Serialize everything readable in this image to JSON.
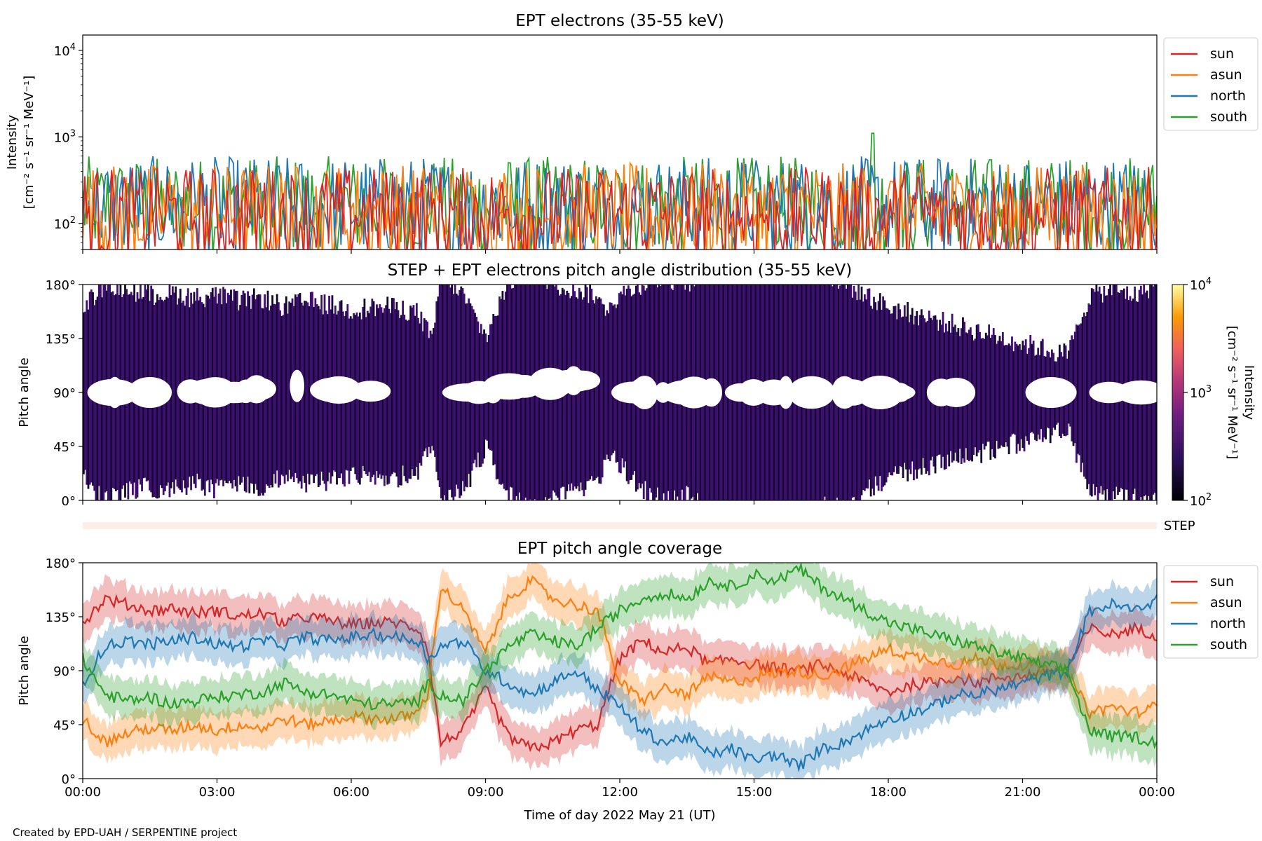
{
  "footer": {
    "credit": "Created by EPD-UAH / SERPENTINE project"
  },
  "colors": {
    "sun": "#d62728",
    "asun": "#ff7f0e",
    "north": "#1f77b4",
    "south": "#2ca02c",
    "pad_fill": "#3d0f6e",
    "pad_dark": "#12072e",
    "step_band": "#fdeee8"
  },
  "chart_data": [
    {
      "type": "line",
      "title": "EPT electrons (35-55 keV)",
      "ylabel": "Intensity",
      "ylabel_units": "[cm⁻² s⁻¹ sr⁻¹ MeV⁻¹]",
      "yscale": "log",
      "ylim": [
        50,
        15000
      ],
      "yticks": [
        {
          "value": 100,
          "base": "10",
          "exp": "2"
        },
        {
          "value": 1000,
          "base": "10",
          "exp": "3"
        },
        {
          "value": 10000,
          "base": "10",
          "exp": "4"
        }
      ],
      "xlim": [
        "00:00",
        "24:00"
      ],
      "legend": "outside-right",
      "series": [
        {
          "name": "sun",
          "color": "#d62728",
          "typical_range": [
            50,
            450
          ]
        },
        {
          "name": "asun",
          "color": "#ff7f0e",
          "typical_range": [
            50,
            500
          ]
        },
        {
          "name": "north",
          "color": "#1f77b4",
          "typical_range": [
            60,
            600
          ]
        },
        {
          "name": "south",
          "color": "#2ca02c",
          "typical_range": [
            60,
            600
          ],
          "peak": {
            "x": "17:40",
            "y": 1100
          }
        }
      ]
    },
    {
      "type": "heatmap",
      "title": "STEP + EPT electrons pitch angle distribution (35-55 keV)",
      "ylabel": "Pitch angle",
      "ylim": [
        0,
        180
      ],
      "yticks": [
        "0°",
        "45°",
        "90°",
        "135°",
        "180°"
      ],
      "xlim": [
        "00:00",
        "24:00"
      ],
      "colorbar": {
        "label": "Intensity",
        "units": "[cm⁻² s⁻¹ sr⁻¹ MeV⁻¹]",
        "scale": "log",
        "range": [
          100,
          10000
        ],
        "ticks": [
          {
            "value": 100,
            "base": "10",
            "exp": "2"
          },
          {
            "value": 1000,
            "base": "10",
            "exp": "3"
          },
          {
            "value": 10000,
            "base": "10",
            "exp": "4"
          }
        ]
      }
    },
    {
      "type": "heatmap",
      "label": "STEP",
      "xlim": [
        "00:00",
        "24:00"
      ]
    },
    {
      "type": "line",
      "title": "EPT pitch angle coverage",
      "ylabel": "Pitch angle",
      "ylim": [
        0,
        180
      ],
      "yticks": [
        "0°",
        "45°",
        "90°",
        "135°",
        "180°"
      ],
      "xlabel": "Time of day 2022 May 21 (UT)",
      "xticks": [
        "00:00",
        "03:00",
        "06:00",
        "09:00",
        "12:00",
        "15:00",
        "18:00",
        "21:00",
        "00:00"
      ],
      "xlim": [
        "00:00",
        "24:00"
      ],
      "legend": "outside-right",
      "series": [
        {
          "name": "sun",
          "color": "#d62728",
          "x": [
            0,
            0.5,
            1,
            1.5,
            2,
            2.5,
            3,
            3.5,
            4,
            4.5,
            5,
            5.5,
            6,
            6.5,
            7,
            7.5,
            7.7,
            8,
            8.5,
            9,
            9.5,
            10,
            10.5,
            11,
            11.5,
            12,
            12.5,
            13,
            13.5,
            14,
            14.5,
            15,
            15.5,
            16,
            16.5,
            17,
            17.5,
            18,
            18.5,
            19,
            19.5,
            20,
            20.5,
            21,
            21.5,
            22,
            22.5,
            23,
            23.5,
            24
          ],
          "y": [
            130,
            150,
            145,
            140,
            142,
            138,
            140,
            135,
            138,
            130,
            135,
            132,
            128,
            130,
            130,
            125,
            110,
            30,
            40,
            75,
            35,
            25,
            30,
            40,
            45,
            100,
            115,
            105,
            110,
            95,
            100,
            95,
            92,
            90,
            95,
            88,
            80,
            72,
            78,
            80,
            85,
            80,
            85,
            85,
            90,
            92,
            125,
            120,
            125,
            120
          ]
        },
        {
          "name": "asun",
          "color": "#ff7f0e",
          "x": [
            0,
            0.5,
            1,
            1.5,
            2,
            2.5,
            3,
            3.5,
            4,
            4.5,
            5,
            5.5,
            6,
            6.5,
            7,
            7.5,
            7.7,
            8,
            8.5,
            9,
            9.5,
            10,
            10.5,
            11,
            11.5,
            12,
            12.5,
            13,
            13.5,
            14,
            14.5,
            15,
            15.5,
            16,
            16.5,
            17,
            17.5,
            18,
            18.5,
            19,
            19.5,
            20,
            20.5,
            21,
            21.5,
            22,
            22.5,
            23,
            23.5,
            24
          ],
          "y": [
            50,
            30,
            38,
            42,
            40,
            45,
            40,
            45,
            42,
            50,
            45,
            48,
            52,
            50,
            50,
            55,
            70,
            160,
            140,
            105,
            150,
            165,
            150,
            145,
            140,
            80,
            65,
            75,
            70,
            85,
            80,
            85,
            88,
            90,
            85,
            92,
            100,
            108,
            102,
            100,
            95,
            100,
            95,
            95,
            90,
            88,
            55,
            60,
            55,
            60
          ]
        },
        {
          "name": "north",
          "color": "#1f77b4",
          "x": [
            0,
            0.5,
            1,
            1.5,
            2,
            2.5,
            3,
            3.5,
            4,
            4.5,
            5,
            5.5,
            6,
            6.5,
            7,
            7.5,
            7.7,
            8,
            8.5,
            9,
            9.5,
            10,
            10.5,
            11,
            11.5,
            12,
            12.5,
            13,
            13.5,
            14,
            14.5,
            15,
            15.5,
            16,
            16.5,
            17,
            17.5,
            18,
            18.5,
            19,
            19.5,
            20,
            20.5,
            21,
            21.5,
            22,
            22.5,
            23,
            23.5,
            24
          ],
          "y": [
            80,
            110,
            115,
            112,
            115,
            118,
            112,
            110,
            115,
            112,
            118,
            115,
            118,
            120,
            118,
            115,
            100,
            110,
            115,
            90,
            80,
            70,
            80,
            90,
            75,
            60,
            40,
            30,
            35,
            20,
            25,
            15,
            20,
            10,
            25,
            30,
            40,
            50,
            55,
            60,
            70,
            70,
            75,
            80,
            85,
            90,
            140,
            145,
            140,
            150
          ]
        },
        {
          "name": "south",
          "color": "#2ca02c",
          "x": [
            0,
            0.5,
            1,
            1.5,
            2,
            2.5,
            3,
            3.5,
            4,
            4.5,
            5,
            5.5,
            6,
            6.5,
            7,
            7.5,
            7.7,
            8,
            8.5,
            9,
            9.5,
            10,
            10.5,
            11,
            11.5,
            12,
            12.5,
            13,
            13.5,
            14,
            14.5,
            15,
            15.5,
            16,
            16.5,
            17,
            17.5,
            18,
            18.5,
            19,
            19.5,
            20,
            20.5,
            21,
            21.5,
            22,
            22.5,
            23,
            23.5,
            24
          ],
          "y": [
            100,
            70,
            65,
            68,
            62,
            65,
            68,
            70,
            72,
            80,
            72,
            70,
            65,
            62,
            62,
            65,
            80,
            70,
            65,
            90,
            110,
            120,
            115,
            110,
            125,
            140,
            150,
            155,
            150,
            165,
            160,
            170,
            165,
            175,
            160,
            150,
            140,
            130,
            125,
            120,
            115,
            110,
            105,
            100,
            95,
            90,
            40,
            35,
            35,
            30
          ]
        }
      ]
    }
  ]
}
